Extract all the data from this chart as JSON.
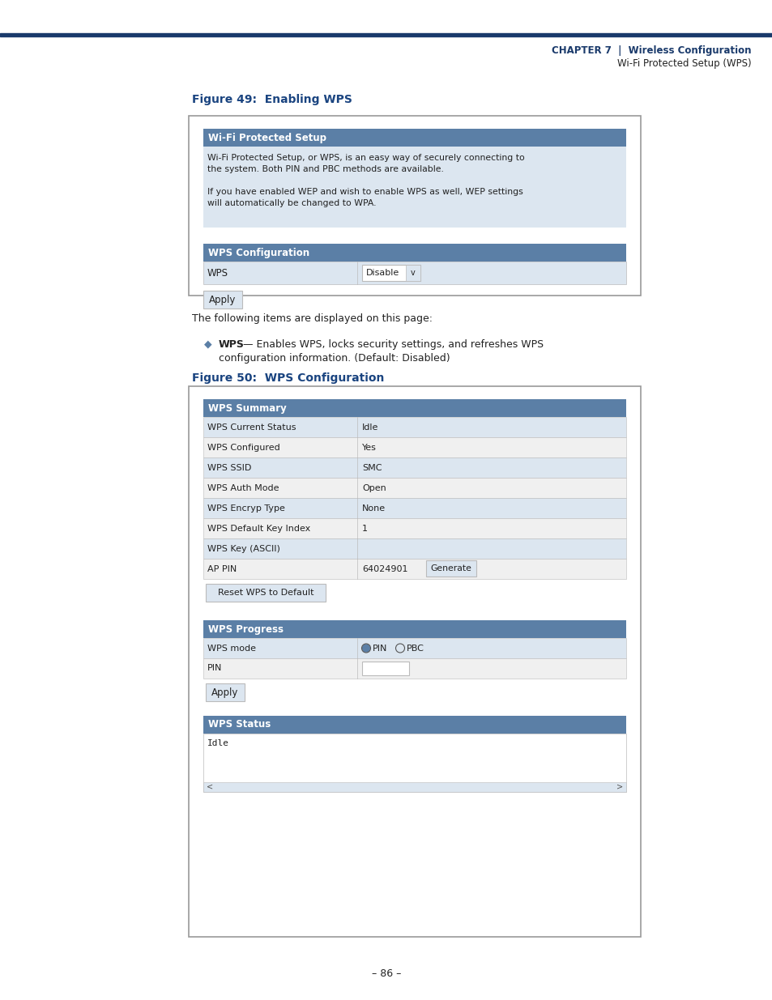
{
  "page_bg": "#ffffff",
  "header_bg": "#e8ecf2",
  "header_line_color": "#1a3a6b",
  "header_chapter": "C",
  "header_chapter_rest": "HAPTER 7",
  "header_pipe": " |  ",
  "header_text2": "Wireless Configuration",
  "header_text3": "Wi-Fi Protected Setup (WPS)",
  "fig49_title": "Figure 49:  Enabling WPS",
  "fig50_title": "Figure 50:  WPS Configuration",
  "section_header_bg": "#5b7fa6",
  "row_bg_light": "#dce6f0",
  "row_bg_white": "#f0f0f0",
  "border_color": "#bbbbbb",
  "table_border": "#999999",
  "body_text_color": "#222222",
  "figure_title_color": "#1a4480",
  "wps_info_bg": "#dce6f0",
  "wps1_header": "Wi-Fi Protected Setup",
  "wps1_desc1": "Wi-Fi Protected Setup, or WPS, is an easy way of securely connecting to",
  "wps1_desc2": "the system. Both PIN and PBC methods are available.",
  "wps1_desc3": "If you have enabled WEP and wish to enable WPS as well, WEP settings",
  "wps1_desc4": "will automatically be changed to WPA.",
  "wps1_config_header": "WPS Configuration",
  "wps1_row_label": "WPS",
  "wps1_dropdown": "Disable",
  "wps1_apply": "Apply",
  "body_para1": "The following items are displayed on this page:",
  "bullet_label": "WPS",
  "bullet_text": "— Enables WPS, locks security settings, and refreshes WPS",
  "bullet_text2": "configuration information. (Default: Disabled)",
  "wps2_summary_header": "WPS Summary",
  "wps2_rows": [
    [
      "WPS Current Status",
      "Idle"
    ],
    [
      "WPS Configured",
      "Yes"
    ],
    [
      "WPS SSID",
      "SMC"
    ],
    [
      "WPS Auth Mode",
      "Open"
    ],
    [
      "WPS Encryp Type",
      "None"
    ],
    [
      "WPS Default Key Index",
      "1"
    ],
    [
      "WPS Key (ASCII)",
      ""
    ],
    [
      "AP PIN",
      "64024901"
    ]
  ],
  "wps2_reset_btn": "Reset WPS to Default",
  "wps2_progress_header": "WPS Progress",
  "wps2_progress_rows": [
    [
      "WPS mode",
      "PIN_PBC"
    ],
    [
      "PIN",
      ""
    ]
  ],
  "wps2_apply": "Apply",
  "wps2_status_header": "WPS Status",
  "wps2_status_text": "Idle",
  "page_number": "– 86 –"
}
